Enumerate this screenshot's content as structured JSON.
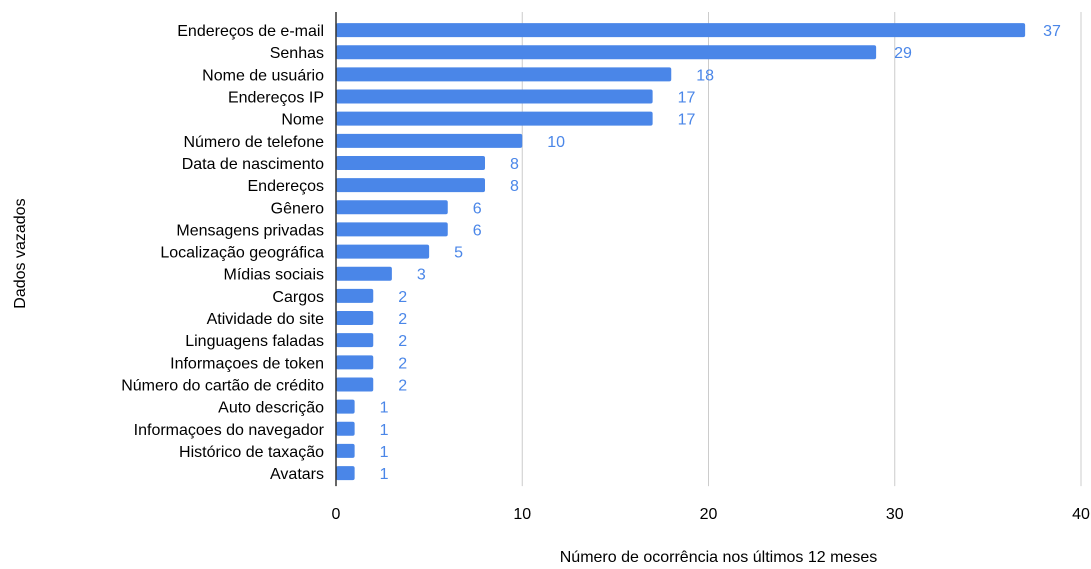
{
  "chart_data": {
    "type": "bar",
    "orientation": "horizontal",
    "categories": [
      "Endereços de e-mail",
      "Senhas",
      "Nome de usuário",
      "Endereços IP",
      "Nome",
      "Número de telefone",
      "Data de nascimento",
      "Endereços",
      "Gênero",
      "Mensagens privadas",
      "Localização geográfica",
      "Mídias sociais",
      "Cargos",
      "Atividade do site",
      "Linguagens faladas",
      "Informaçoes de token",
      "Número do cartão de crédito",
      "Auto descrição",
      "Informaçoes do navegador",
      "Histórico de taxação",
      "Avatars"
    ],
    "values": [
      37,
      29,
      18,
      17,
      17,
      10,
      8,
      8,
      6,
      6,
      5,
      3,
      2,
      2,
      2,
      2,
      2,
      1,
      1,
      1,
      1
    ],
    "title": "",
    "xlabel": "Número de ocorrência nos últimos 12 meses",
    "ylabel": "Dados vazados",
    "xlim": [
      0,
      40
    ],
    "xticks": [
      0,
      10,
      20,
      30,
      40
    ],
    "grid": true,
    "legend": "none",
    "bar_color": "#4a86e8",
    "label_color": "#4a86e8"
  }
}
